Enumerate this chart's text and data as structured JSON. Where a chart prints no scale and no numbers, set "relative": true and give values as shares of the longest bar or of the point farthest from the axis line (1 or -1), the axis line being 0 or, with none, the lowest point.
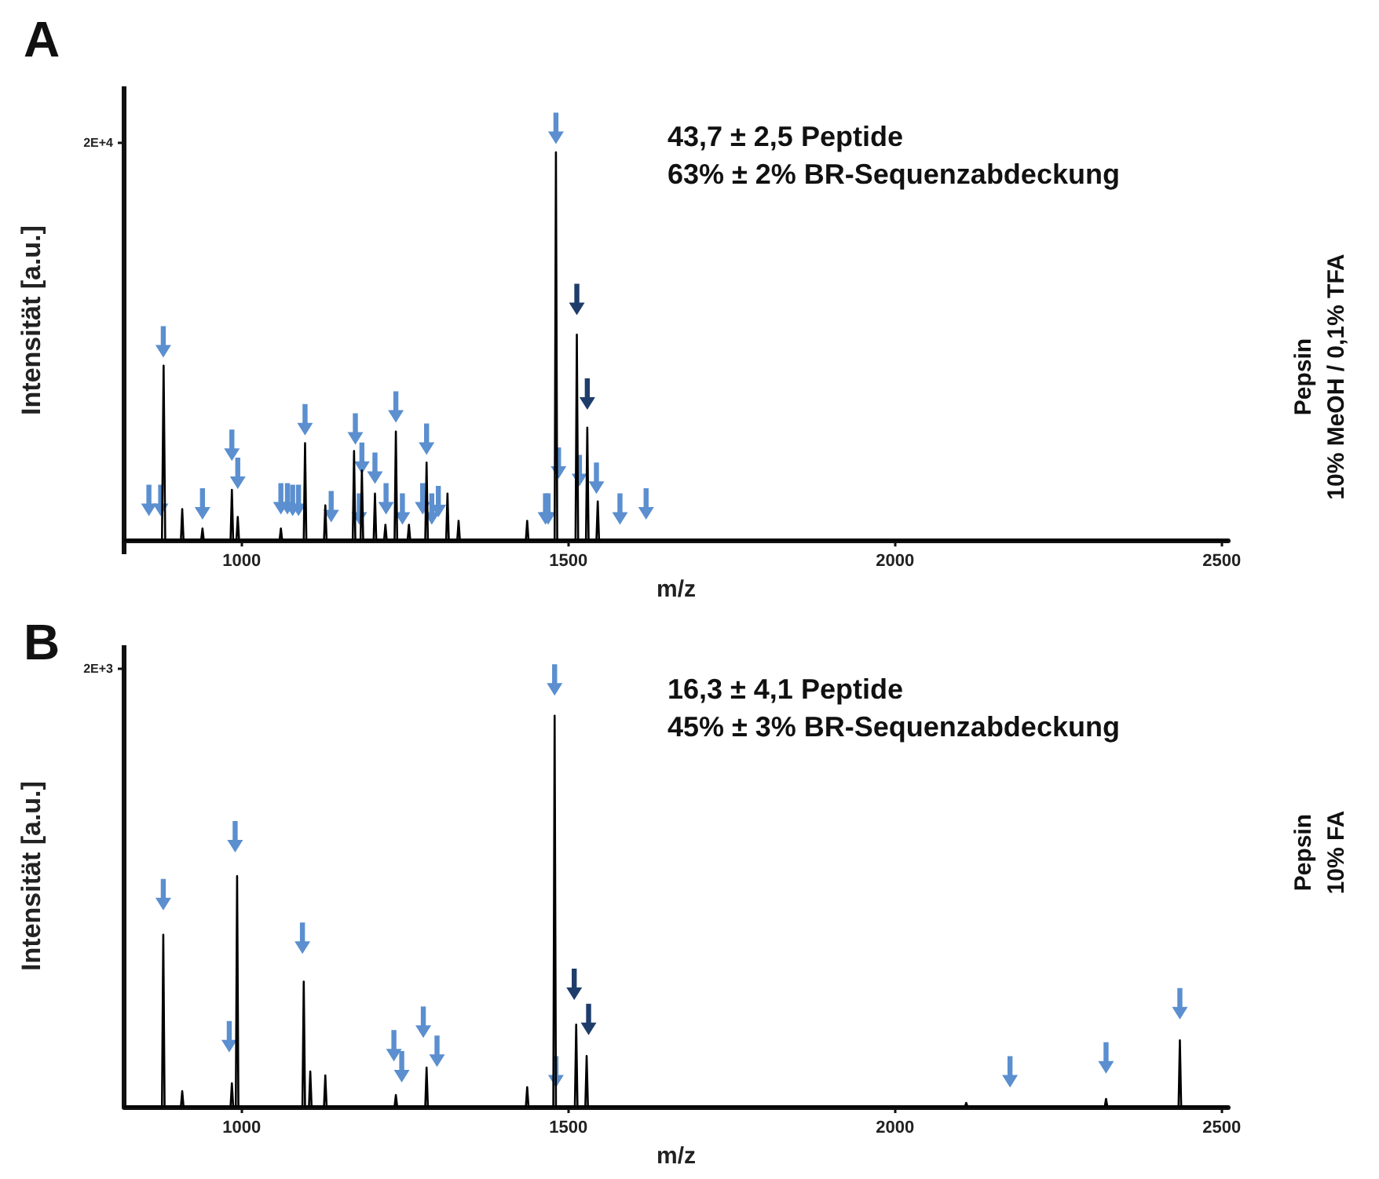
{
  "chart_data": [
    {
      "type": "line",
      "title": "A",
      "xlabel": "m/z",
      "ylabel": "Intensität [a.u.]",
      "relative": true,
      "annotations": [
        "2E+4",
        "43,7 ± 2,5 Peptide",
        "63% ± 2% BR-Sequenzabdeckung",
        "Pepsin",
        "10% MeOH / 0,1% TFA"
      ],
      "xlim": [
        820,
        2510
      ],
      "xticks": [
        1000,
        1500,
        2000,
        2500
      ],
      "marker": "none",
      "series": [
        {
          "color": "#000000",
          "x": [
            820,
            878,
            880.5,
            883,
            907,
            909,
            911,
            938,
            940,
            942,
            983,
            985,
            987,
            992,
            994,
            996,
            1058,
            1060,
            1062,
            1095,
            1097,
            1099,
            1126,
            1128,
            1130,
            1170,
            1172,
            1174,
            1182,
            1184,
            1186,
            1202,
            1204,
            1206,
            1218,
            1220,
            1222,
            1234,
            1236,
            1238,
            1254,
            1256,
            1258,
            1281,
            1283,
            1285,
            1313,
            1315,
            1317,
            1330,
            1332,
            1334,
            1435,
            1437,
            1439,
            1479,
            1481,
            1483,
            1511,
            1513,
            1515,
            1527,
            1529,
            1531,
            1543,
            1545,
            1547,
            2510
          ],
          "values": [
            0,
            0,
            0.45,
            0,
            0,
            0.08,
            0,
            0,
            0.03,
            0,
            0,
            0.13,
            0,
            0,
            0.06,
            0,
            0,
            0.03,
            0,
            0,
            0.25,
            0,
            0,
            0.09,
            0,
            0,
            0.23,
            0,
            0,
            0.18,
            0,
            0,
            0.12,
            0,
            0,
            0.04,
            0,
            0,
            0.28,
            0,
            0,
            0.04,
            0,
            0,
            0.2,
            0,
            0,
            0.12,
            0,
            0,
            0.05,
            0,
            0,
            0.05,
            0,
            0,
            1,
            0,
            0,
            0.53,
            0,
            0,
            0.29,
            0,
            0,
            0.1,
            0,
            0
          ]
        }
      ]
    },
    {
      "type": "line",
      "title": "B",
      "xlabel": "m/z",
      "ylabel": "Intensität [a.u.]",
      "relative": true,
      "annotations": [
        "2E+3",
        "16,3 ± 4,1 Peptide",
        "45% ± 3% BR-Sequenzabdeckung",
        "Pepsin",
        "10% FA"
      ],
      "xlim": [
        820,
        2510
      ],
      "xticks": [
        1000,
        1500,
        2000,
        2500
      ],
      "marker": "none",
      "series": [
        {
          "color": "#000000",
          "x": [
            820,
            878,
            880,
            882,
            907,
            909,
            911,
            983,
            985,
            987,
            991,
            993,
            995,
            1093,
            1095,
            1097,
            1103,
            1105,
            1107,
            1126,
            1128,
            1130,
            1234,
            1236,
            1238,
            1281,
            1283,
            1285,
            1435,
            1437,
            1439,
            1477,
            1479,
            1481,
            1510,
            1512,
            1514,
            1526,
            1528,
            1530,
            2107,
            2109,
            2111,
            2321,
            2323,
            2325,
            2434,
            2436,
            2438,
            2510
          ],
          "values": [
            0,
            0,
            0.44,
            0,
            0,
            0.04,
            0,
            0,
            0.06,
            0,
            0,
            0.59,
            0,
            0,
            0.32,
            0,
            0,
            0.09,
            0,
            0,
            0.08,
            0,
            0,
            0.03,
            0,
            0,
            0.1,
            0,
            0,
            0.05,
            0,
            0,
            1,
            0,
            0,
            0.21,
            0,
            0,
            0.13,
            0,
            0,
            0.01,
            0,
            0,
            0.02,
            0,
            0,
            0.17,
            0,
            0
          ]
        }
      ]
    }
  ]
}
